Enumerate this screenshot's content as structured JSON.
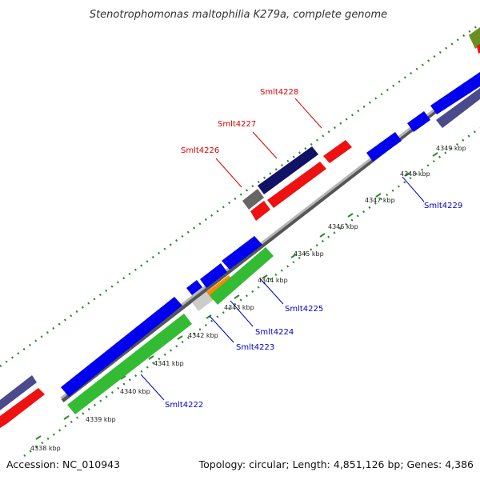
{
  "title": "Stenotrophomonas maltophilia K279a, complete genome",
  "footer": {
    "accession": "Accession: NC_010943",
    "summary": "Topology: circular; Length: 4,851,126 bp; Genes: 4,386"
  },
  "colors": {
    "forward_label": "#dd0000",
    "reverse_label": "#0000cc",
    "backbone": "#8a8a8a",
    "tick": "#2e8b2e"
  },
  "kbp_ticks": [
    "4338 kbp",
    "4339 kbp",
    "4340 kbp",
    "4341 kbp",
    "4342 kbp",
    "4343 kbp",
    "4344 kbp",
    "4345 kbp",
    "4346 kbp",
    "4347 kbp",
    "4348 kbp",
    "4349 kbp"
  ],
  "gene_labels": {
    "smlt4226": "Smlt4226",
    "smlt4227": "Smlt4227",
    "smlt4228": "Smlt4228",
    "smlt4222": "Smlt4222",
    "smlt4223": "Smlt4223",
    "smlt4224": "Smlt4224",
    "smlt4225": "Smlt4225",
    "smlt4229": "Smlt4229"
  }
}
